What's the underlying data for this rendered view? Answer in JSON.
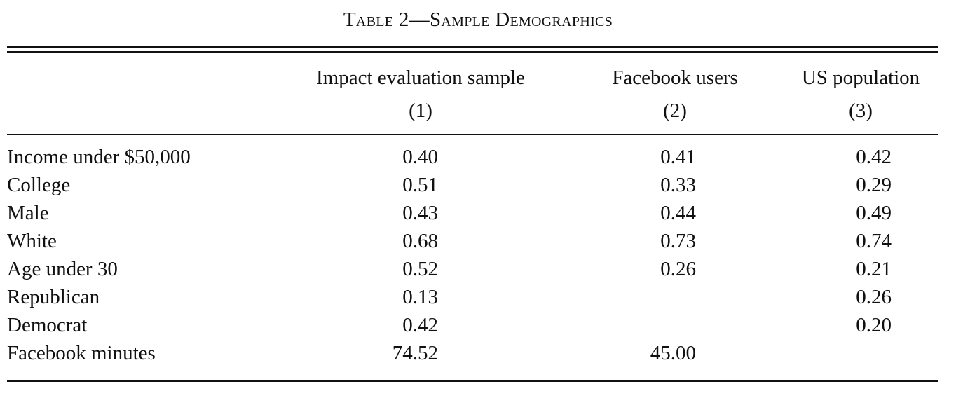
{
  "caption": "Table 2—Sample Demographics",
  "columns": [
    {
      "title": "Impact evaluation sample",
      "number": "(1)"
    },
    {
      "title": "Facebook users",
      "number": "(2)"
    },
    {
      "title": "US population",
      "number": "(3)"
    }
  ],
  "rows": [
    {
      "label": "Income under $50,000",
      "values": [
        "0.40",
        "0.41",
        "0.42"
      ]
    },
    {
      "label": "College",
      "values": [
        "0.51",
        "0.33",
        "0.29"
      ]
    },
    {
      "label": "Male",
      "values": [
        "0.43",
        "0.44",
        "0.49"
      ]
    },
    {
      "label": "White",
      "values": [
        "0.68",
        "0.73",
        "0.74"
      ]
    },
    {
      "label": "Age under 30",
      "values": [
        "0.52",
        "0.26",
        "0.21"
      ]
    },
    {
      "label": "Republican",
      "values": [
        "0.13",
        "",
        "0.26"
      ]
    },
    {
      "label": "Democrat",
      "values": [
        "0.42",
        "",
        "0.20"
      ]
    },
    {
      "label": "Facebook minutes",
      "values": [
        "74.52",
        "45.00",
        ""
      ]
    }
  ]
}
